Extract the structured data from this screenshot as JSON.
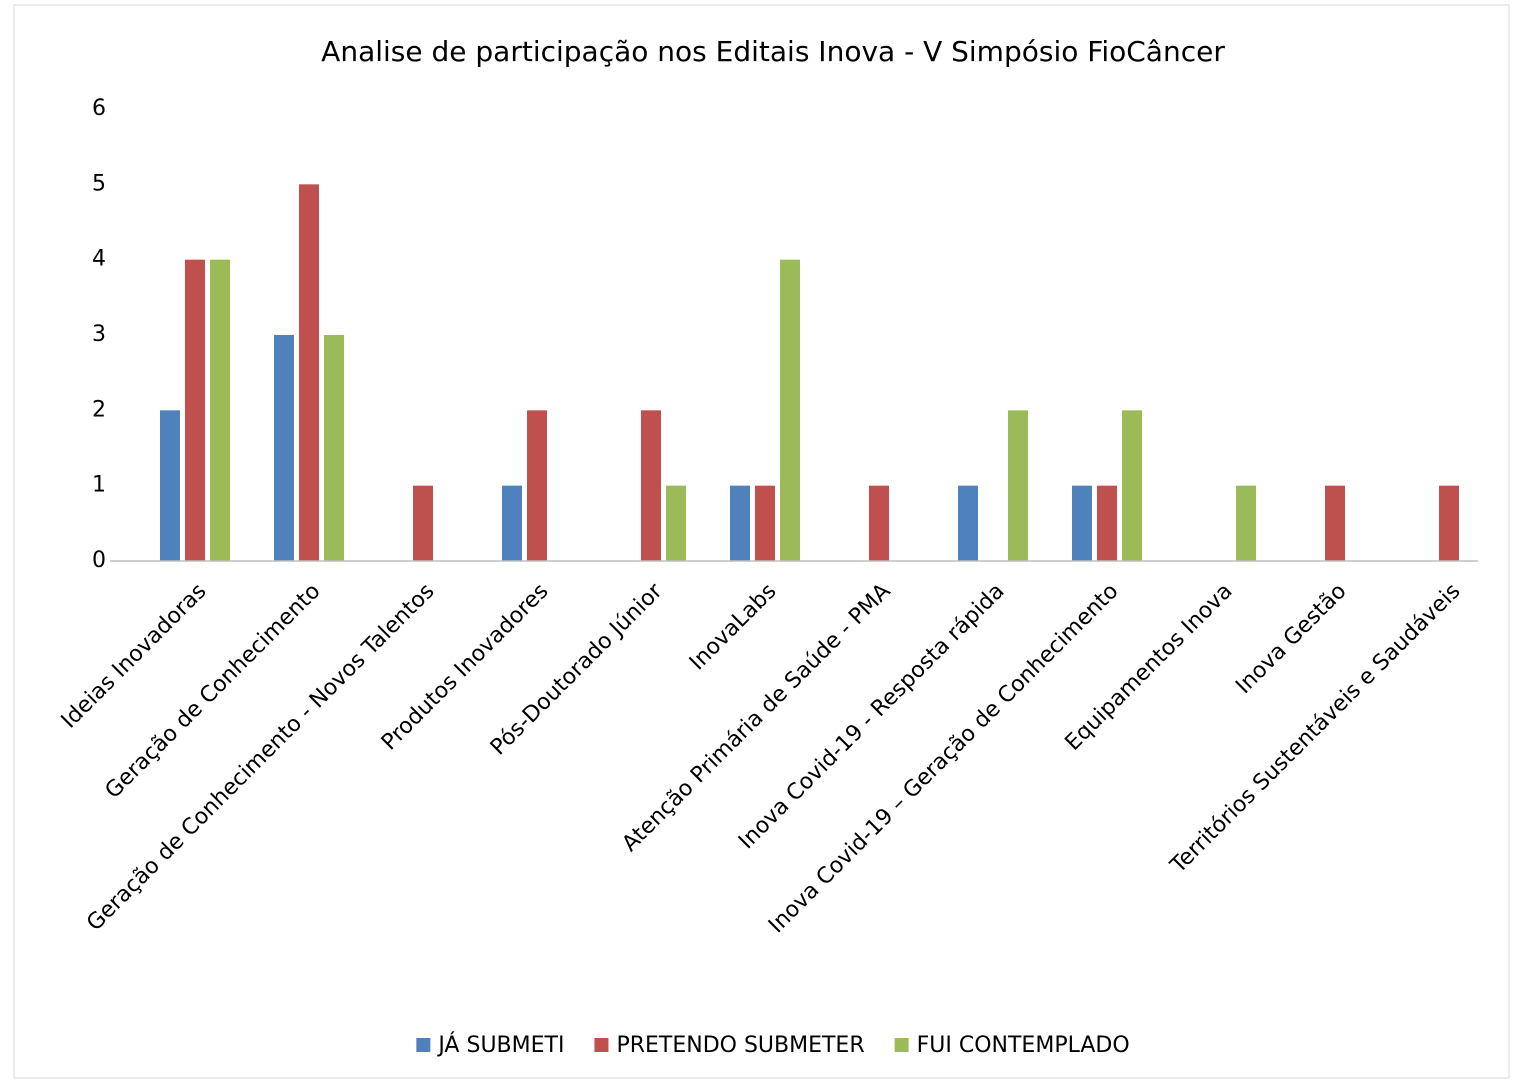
{
  "chart_data": {
    "type": "bar",
    "title": "Analise de participação nos Editais Inova - V Simpósio FioCâncer",
    "categories": [
      "Ideias Inovadoras",
      "Geração de Conhecimento",
      "Geração de Conhecimento - Novos Talentos",
      "Produtos Inovadores",
      "Pós-Doutorado Júnior",
      "InovaLabs",
      "Atenção Primária de Saúde - PMA",
      "Inova Covid-19 - Resposta rápida",
      "Inova Covid-19 – Geração de Conhecimento",
      "Equipamentos Inova",
      "Inova Gestão",
      "Territórios Sustentáveis e Saudáveis"
    ],
    "series": [
      {
        "name": "JÁ SUBMETI",
        "color": "#4f81bd",
        "values": [
          2,
          3,
          0,
          1,
          0,
          1,
          0,
          1,
          1,
          0,
          0,
          0
        ]
      },
      {
        "name": "PRETENDO SUBMETER",
        "color": "#c0504d",
        "values": [
          4,
          5,
          1,
          2,
          2,
          1,
          1,
          0,
          1,
          0,
          1,
          1
        ]
      },
      {
        "name": "FUI CONTEMPLADO",
        "color": "#9bbb59",
        "values": [
          4,
          3,
          0,
          0,
          1,
          4,
          0,
          2,
          2,
          1,
          0,
          0
        ]
      }
    ],
    "ylim": [
      0,
      6
    ],
    "yticks": [
      0,
      1,
      2,
      3,
      4,
      5,
      6
    ],
    "grid": false,
    "legend": "bottom"
  }
}
